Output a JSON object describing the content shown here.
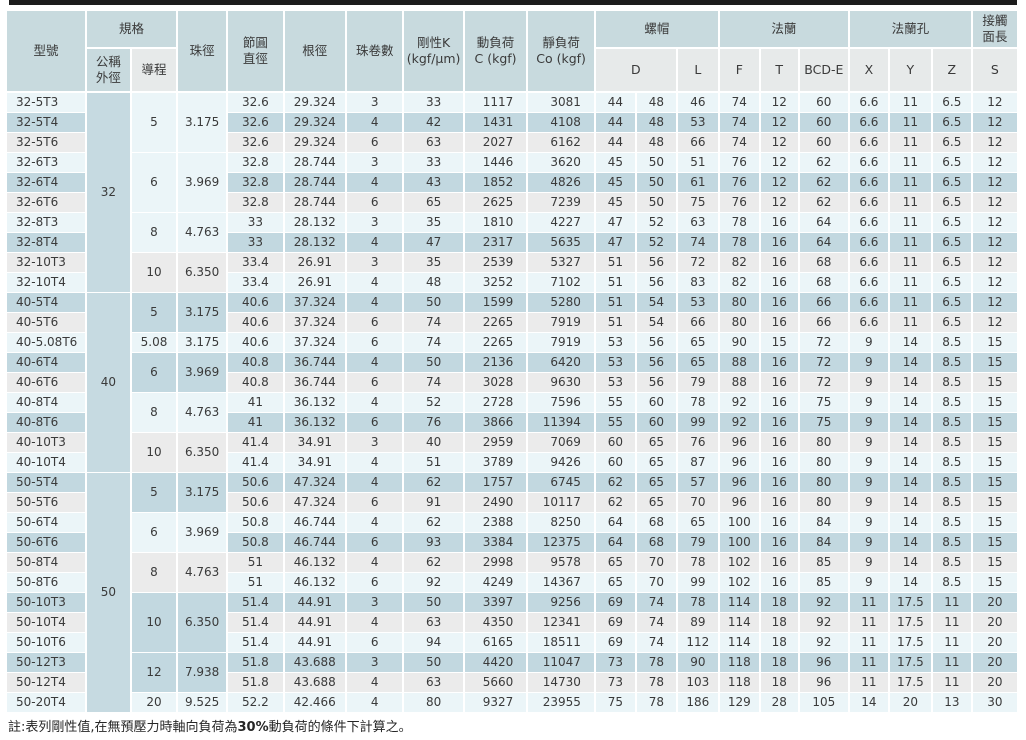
{
  "style": {
    "row_colors": [
      "#ebf5f8",
      "#c2d8e0",
      "#ebebeb"
    ],
    "nominal_bg": "#c6dae1",
    "header_bg": "#c8dade",
    "subheader_bg": "#e7eaea",
    "top_rule_color": "#1c1c1c"
  },
  "table": {
    "header": {
      "model": "型號",
      "spec_group": "規格",
      "nominal_od": "公稱\n外徑",
      "lead": "導程",
      "ball_dia": "珠徑",
      "pitch_dia": "節圓\n直徑",
      "root_dia": "根徑",
      "turns": "珠卷數",
      "rigidity": "剛性K\n(kgf/μm)",
      "dyn_load": "動負荷\nC (kgf)",
      "stat_load": "靜負荷\nCo (kgf)",
      "nut_group": "螺帽",
      "flange_group": "法蘭",
      "flange_hole_group": "法蘭孔",
      "contact_group": "接觸\n面長",
      "d": "D",
      "l": "L",
      "f": "F",
      "t": "T",
      "bcd_e": "BCD-E",
      "x": "X",
      "y": "Y",
      "z": "Z",
      "s": "S"
    },
    "value_col_names": [
      "pitch-dia",
      "root-dia",
      "ball-turns",
      "rigidity-k",
      "dynamic-load",
      "static-load",
      "nut-d1",
      "nut-d2",
      "nut-l",
      "flange-f",
      "flange-t",
      "flange-bcd-e",
      "hole-x",
      "hole-y",
      "hole-z",
      "contact-s"
    ],
    "right_aligned_value_cols": [
      4,
      5
    ],
    "nominal_groups": [
      {
        "label": "32",
        "span": 10
      },
      {
        "label": "40",
        "span": 9
      },
      {
        "label": "50",
        "span": 12
      }
    ],
    "lead_groups": [
      {
        "lead": "5",
        "ball_dia": "3.175",
        "span": 3
      },
      {
        "lead": "6",
        "ball_dia": "3.969",
        "span": 3
      },
      {
        "lead": "8",
        "ball_dia": "4.763",
        "span": 2
      },
      {
        "lead": "10",
        "ball_dia": "6.350",
        "span": 2
      },
      {
        "lead": "5",
        "ball_dia": "3.175",
        "span": 2
      },
      {
        "lead": "5.08",
        "ball_dia": "3.175",
        "span": 1
      },
      {
        "lead": "6",
        "ball_dia": "3.969",
        "span": 2
      },
      {
        "lead": "8",
        "ball_dia": "4.763",
        "span": 2
      },
      {
        "lead": "10",
        "ball_dia": "6.350",
        "span": 2
      },
      {
        "lead": "5",
        "ball_dia": "3.175",
        "span": 2
      },
      {
        "lead": "6",
        "ball_dia": "3.969",
        "span": 2
      },
      {
        "lead": "8",
        "ball_dia": "4.763",
        "span": 2
      },
      {
        "lead": "10",
        "ball_dia": "6.350",
        "span": 3
      },
      {
        "lead": "12",
        "ball_dia": "7.938",
        "span": 2
      },
      {
        "lead": "20",
        "ball_dia": "9.525",
        "span": 1
      }
    ],
    "rows": [
      {
        "model": "32-5T3",
        "values": [
          "32.6",
          "29.324",
          "3",
          "33",
          "1117",
          "3081",
          "44",
          "48",
          "46",
          "74",
          "12",
          "60",
          "6.6",
          "11",
          "6.5",
          "12"
        ]
      },
      {
        "model": "32-5T4",
        "values": [
          "32.6",
          "29.324",
          "4",
          "42",
          "1431",
          "4108",
          "44",
          "48",
          "53",
          "74",
          "12",
          "60",
          "6.6",
          "11",
          "6.5",
          "12"
        ]
      },
      {
        "model": "32-5T6",
        "values": [
          "32.6",
          "29.324",
          "6",
          "63",
          "2027",
          "6162",
          "44",
          "48",
          "66",
          "74",
          "12",
          "60",
          "6.6",
          "11",
          "6.5",
          "12"
        ]
      },
      {
        "model": "32-6T3",
        "values": [
          "32.8",
          "28.744",
          "3",
          "33",
          "1446",
          "3620",
          "45",
          "50",
          "51",
          "76",
          "12",
          "62",
          "6.6",
          "11",
          "6.5",
          "12"
        ]
      },
      {
        "model": "32-6T4",
        "values": [
          "32.8",
          "28.744",
          "4",
          "43",
          "1852",
          "4826",
          "45",
          "50",
          "61",
          "76",
          "12",
          "62",
          "6.6",
          "11",
          "6.5",
          "12"
        ]
      },
      {
        "model": "32-6T6",
        "values": [
          "32.8",
          "28.744",
          "6",
          "65",
          "2625",
          "7239",
          "45",
          "50",
          "75",
          "76",
          "12",
          "62",
          "6.6",
          "11",
          "6.5",
          "12"
        ]
      },
      {
        "model": "32-8T3",
        "values": [
          "33",
          "28.132",
          "3",
          "35",
          "1810",
          "4227",
          "47",
          "52",
          "63",
          "78",
          "16",
          "64",
          "6.6",
          "11",
          "6.5",
          "12"
        ]
      },
      {
        "model": "32-8T4",
        "values": [
          "33",
          "28.132",
          "4",
          "47",
          "2317",
          "5635",
          "47",
          "52",
          "74",
          "78",
          "16",
          "64",
          "6.6",
          "11",
          "6.5",
          "12"
        ]
      },
      {
        "model": "32-10T3",
        "values": [
          "33.4",
          "26.91",
          "3",
          "35",
          "2539",
          "5327",
          "51",
          "56",
          "72",
          "82",
          "16",
          "68",
          "6.6",
          "11",
          "6.5",
          "12"
        ]
      },
      {
        "model": "32-10T4",
        "values": [
          "33.4",
          "26.91",
          "4",
          "48",
          "3252",
          "7102",
          "51",
          "56",
          "83",
          "82",
          "16",
          "68",
          "6.6",
          "11",
          "6.5",
          "12"
        ]
      },
      {
        "model": "40-5T4",
        "values": [
          "40.6",
          "37.324",
          "4",
          "50",
          "1599",
          "5280",
          "51",
          "54",
          "53",
          "80",
          "16",
          "66",
          "6.6",
          "11",
          "6.5",
          "12"
        ]
      },
      {
        "model": "40-5T6",
        "values": [
          "40.6",
          "37.324",
          "6",
          "74",
          "2265",
          "7919",
          "51",
          "54",
          "66",
          "80",
          "16",
          "66",
          "6.6",
          "11",
          "6.5",
          "12"
        ]
      },
      {
        "model": "40-5.08T6",
        "values": [
          "40.6",
          "37.324",
          "6",
          "74",
          "2265",
          "7919",
          "53",
          "56",
          "65",
          "90",
          "15",
          "72",
          "9",
          "14",
          "8.5",
          "15"
        ]
      },
      {
        "model": "40-6T4",
        "values": [
          "40.8",
          "36.744",
          "4",
          "50",
          "2136",
          "6420",
          "53",
          "56",
          "65",
          "88",
          "16",
          "72",
          "9",
          "14",
          "8.5",
          "15"
        ]
      },
      {
        "model": "40-6T6",
        "values": [
          "40.8",
          "36.744",
          "6",
          "74",
          "3028",
          "9630",
          "53",
          "56",
          "79",
          "88",
          "16",
          "72",
          "9",
          "14",
          "8.5",
          "15"
        ]
      },
      {
        "model": "40-8T4",
        "values": [
          "41",
          "36.132",
          "4",
          "52",
          "2728",
          "7596",
          "55",
          "60",
          "78",
          "92",
          "16",
          "75",
          "9",
          "14",
          "8.5",
          "15"
        ]
      },
      {
        "model": "40-8T6",
        "values": [
          "41",
          "36.132",
          "6",
          "76",
          "3866",
          "11394",
          "55",
          "60",
          "99",
          "92",
          "16",
          "75",
          "9",
          "14",
          "8.5",
          "15"
        ]
      },
      {
        "model": "40-10T3",
        "values": [
          "41.4",
          "34.91",
          "3",
          "40",
          "2959",
          "7069",
          "60",
          "65",
          "76",
          "96",
          "16",
          "80",
          "9",
          "14",
          "8.5",
          "15"
        ]
      },
      {
        "model": "40-10T4",
        "values": [
          "41.4",
          "34.91",
          "4",
          "51",
          "3789",
          "9426",
          "60",
          "65",
          "87",
          "96",
          "16",
          "80",
          "9",
          "14",
          "8.5",
          "15"
        ]
      },
      {
        "model": "50-5T4",
        "values": [
          "50.6",
          "47.324",
          "4",
          "62",
          "1757",
          "6745",
          "62",
          "65",
          "57",
          "96",
          "16",
          "80",
          "9",
          "14",
          "8.5",
          "15"
        ]
      },
      {
        "model": "50-5T6",
        "values": [
          "50.6",
          "47.324",
          "6",
          "91",
          "2490",
          "10117",
          "62",
          "65",
          "70",
          "96",
          "16",
          "80",
          "9",
          "14",
          "8.5",
          "15"
        ]
      },
      {
        "model": "50-6T4",
        "values": [
          "50.8",
          "46.744",
          "4",
          "62",
          "2388",
          "8250",
          "64",
          "68",
          "65",
          "100",
          "16",
          "84",
          "9",
          "14",
          "8.5",
          "15"
        ]
      },
      {
        "model": "50-6T6",
        "values": [
          "50.8",
          "46.744",
          "6",
          "93",
          "3384",
          "12375",
          "64",
          "68",
          "79",
          "100",
          "16",
          "84",
          "9",
          "14",
          "8.5",
          "15"
        ]
      },
      {
        "model": "50-8T4",
        "values": [
          "51",
          "46.132",
          "4",
          "62",
          "2998",
          "9578",
          "65",
          "70",
          "78",
          "102",
          "16",
          "85",
          "9",
          "14",
          "8.5",
          "15"
        ]
      },
      {
        "model": "50-8T6",
        "values": [
          "51",
          "46.132",
          "6",
          "92",
          "4249",
          "14367",
          "65",
          "70",
          "99",
          "102",
          "16",
          "85",
          "9",
          "14",
          "8.5",
          "15"
        ]
      },
      {
        "model": "50-10T3",
        "values": [
          "51.4",
          "44.91",
          "3",
          "50",
          "3397",
          "9256",
          "69",
          "74",
          "78",
          "114",
          "18",
          "92",
          "11",
          "17.5",
          "11",
          "20"
        ]
      },
      {
        "model": "50-10T4",
        "values": [
          "51.4",
          "44.91",
          "4",
          "63",
          "4350",
          "12341",
          "69",
          "74",
          "89",
          "114",
          "18",
          "92",
          "11",
          "17.5",
          "11",
          "20"
        ]
      },
      {
        "model": "50-10T6",
        "values": [
          "51.4",
          "44.91",
          "6",
          "94",
          "6165",
          "18511",
          "69",
          "74",
          "112",
          "114",
          "18",
          "92",
          "11",
          "17.5",
          "11",
          "20"
        ]
      },
      {
        "model": "50-12T3",
        "values": [
          "51.8",
          "43.688",
          "3",
          "50",
          "4420",
          "11047",
          "73",
          "78",
          "90",
          "118",
          "18",
          "96",
          "11",
          "17.5",
          "11",
          "20"
        ]
      },
      {
        "model": "50-12T4",
        "values": [
          "51.8",
          "43.688",
          "4",
          "63",
          "5660",
          "14730",
          "73",
          "78",
          "103",
          "118",
          "18",
          "96",
          "11",
          "17.5",
          "11",
          "20"
        ]
      },
      {
        "model": "50-20T4",
        "values": [
          "52.2",
          "42.466",
          "4",
          "80",
          "9327",
          "23955",
          "75",
          "78",
          "186",
          "129",
          "28",
          "105",
          "14",
          "20",
          "13",
          "30"
        ]
      }
    ]
  },
  "note": {
    "prefix": "註:表列剛性值,在無預壓力時軸向負荷為",
    "bold": "30%",
    "suffix": "動負荷的條件下計算之。"
  }
}
